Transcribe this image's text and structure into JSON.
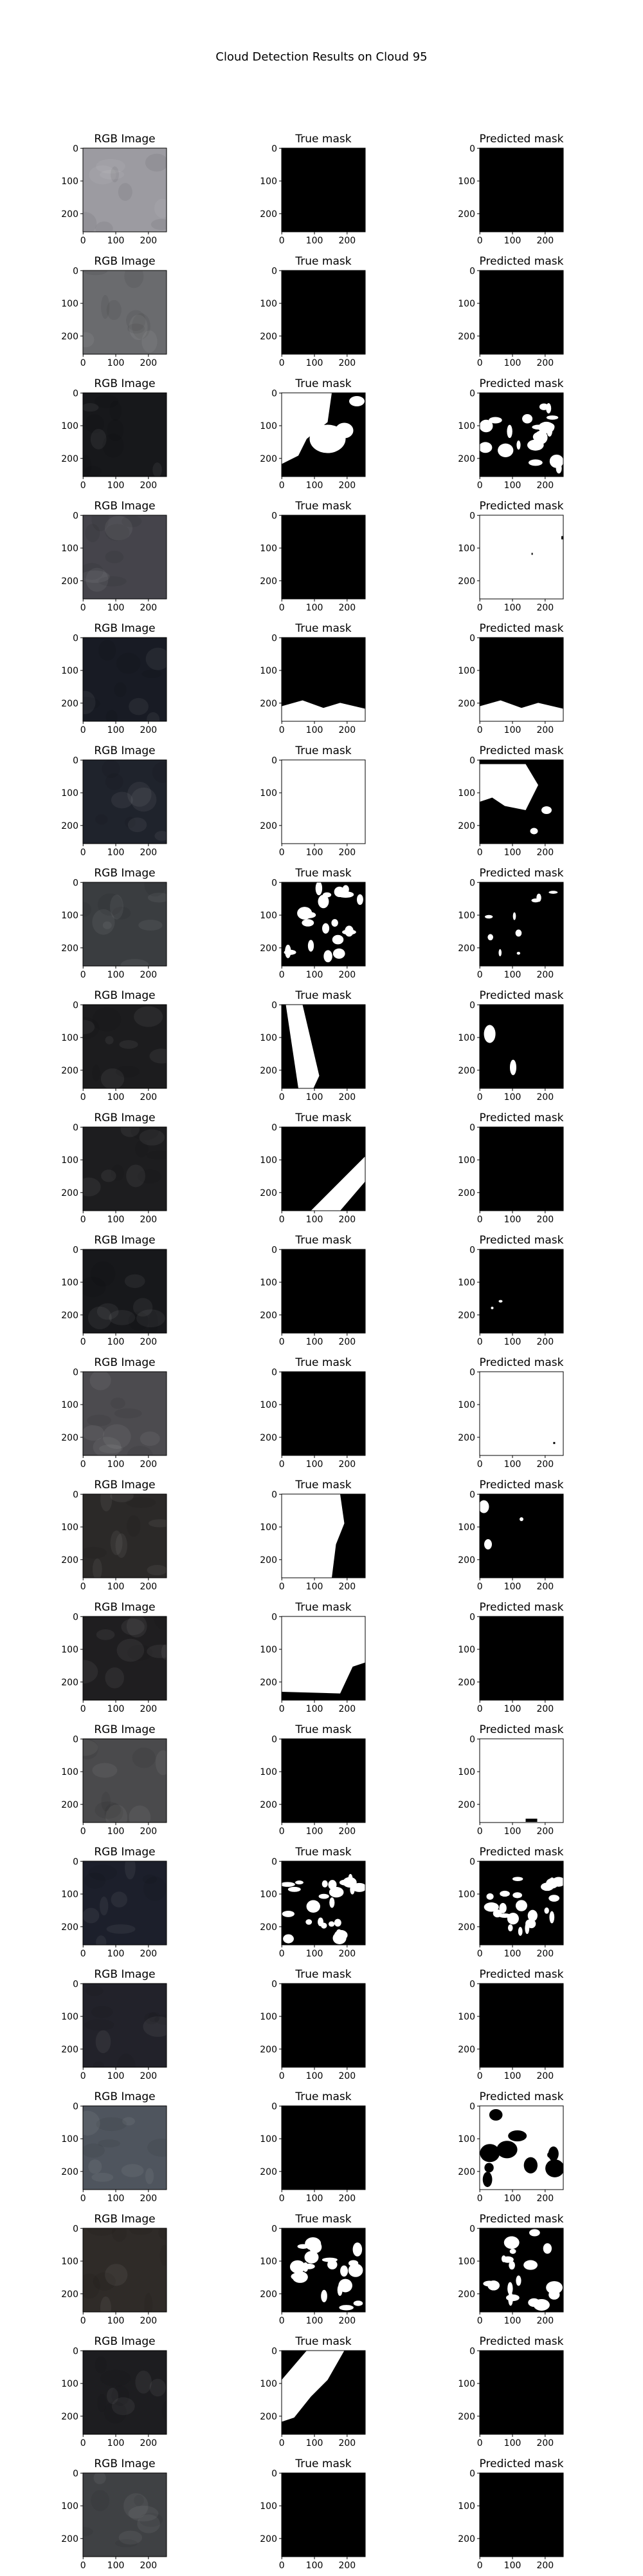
{
  "chart_data": {
    "type": "image-grid",
    "title": "Cloud Detection Results on Cloud 95",
    "column_titles": [
      "RGB Image",
      "True mask",
      "Predicted mask"
    ],
    "x_ticks": [
      "0",
      "100",
      "200"
    ],
    "y_ticks": [
      "0",
      "100",
      "200"
    ],
    "image_size": 256,
    "rows": [
      {
        "rgb": "#9c9ba1",
        "true_mask": "black",
        "pred_mask": "black"
      },
      {
        "rgb": "#6a6b6e",
        "true_mask": "black",
        "pred_mask": "black"
      },
      {
        "rgb": "#17181b",
        "true_mask": "white-blobs-left",
        "pred_mask": "scattered-blobs"
      },
      {
        "rgb": "#45444b",
        "true_mask": "black",
        "pred_mask": "white"
      },
      {
        "rgb": "#181b24",
        "true_mask": "white-bottom-edge",
        "pred_mask": "white-bottom-edge"
      },
      {
        "rgb": "#1f232c",
        "true_mask": "white",
        "pred_mask": "black-with-white-left"
      },
      {
        "rgb": "#3a3d40",
        "true_mask": "scattered-blobs",
        "pred_mask": "sparse-blobs"
      },
      {
        "rgb": "#1c1c1e",
        "true_mask": "diagonal-band-left",
        "pred_mask": "sparse-left"
      },
      {
        "rgb": "#1d1d1f",
        "true_mask": "diagonal-band-bottom-right",
        "pred_mask": "black"
      },
      {
        "rgb": "#17181b",
        "true_mask": "black",
        "pred_mask": "tiny-specks"
      },
      {
        "rgb": "#4c4b4f",
        "true_mask": "black",
        "pred_mask": "white"
      },
      {
        "rgb": "#2b2928",
        "true_mask": "white-with-black-right",
        "pred_mask": "black-with-white-top"
      },
      {
        "rgb": "#1f1e20",
        "true_mask": "white-with-black-corner",
        "pred_mask": "black"
      },
      {
        "rgb": "#4a4a4c",
        "true_mask": "black",
        "pred_mask": "white"
      },
      {
        "rgb": "#1c1f2b",
        "true_mask": "scattered-blobs-bottom",
        "pred_mask": "scattered-blobs-bottom"
      },
      {
        "rgb": "#22222a",
        "true_mask": "black",
        "pred_mask": "black"
      },
      {
        "rgb": "#4f555e",
        "true_mask": "black",
        "pred_mask": "white-with-black-blobs"
      },
      {
        "rgb": "#2f2b28",
        "true_mask": "scattered-blobs",
        "pred_mask": "scattered-blobs"
      },
      {
        "rgb": "#1d1d20",
        "true_mask": "white-blob-left",
        "pred_mask": "black"
      },
      {
        "rgb": "#3f4144",
        "true_mask": "black",
        "pred_mask": "black"
      }
    ]
  }
}
